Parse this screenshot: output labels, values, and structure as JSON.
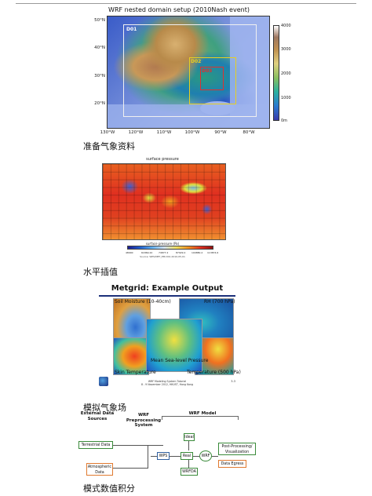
{
  "panel1": {
    "title": "WRF nested domain setup (2010Nash event)",
    "domains": [
      "D01",
      "D02",
      "D03"
    ],
    "lat_ticks": [
      "50°N",
      "40°N",
      "30°N",
      "20°N"
    ],
    "lon_ticks": [
      "130°W",
      "120°W",
      "110°W",
      "100°W",
      "90°W",
      "80°W"
    ],
    "colorbar": [
      "4000",
      "3000",
      "2000",
      "1000",
      "0m"
    ],
    "caption": "准备气象资料"
  },
  "panel2": {
    "title": "surface pressure",
    "colorbar_title": "surface pressure (Pa)",
    "colorbar_ticks": [
      "48900",
      "61869.22",
      "74877.2",
      "87929.2",
      "100880.2",
      "113874.6"
    ],
    "source": "Source: WPS/MET_EM.D01.2010-05-01",
    "caption": "水平插值"
  },
  "panel3": {
    "title": "Metgrid: Example Output",
    "tiles": {
      "soil": "Soil Moisture (10-40cm)",
      "rh": "RH (700 hPa)",
      "mslp": "Mean Sea-level Pressure",
      "skin": "Skin Temperature",
      "temp": "Temperature (500 hPa)"
    },
    "footer1": "WRF Modeling System Tutorial",
    "footer2": "8 - 9 November 2012, HKUST, Hong Kong",
    "page": "3-3",
    "caption": "模拟气象场"
  },
  "panel4": {
    "headers": {
      "ext": "External Data Sources",
      "pre": "WRF Preprocessing System",
      "model": "WRF Model"
    },
    "boxes": {
      "terrestrial": "Terrestrial Data",
      "atmos": "Atmospheric Data",
      "wps": "WPS",
      "ideal": "Ideal",
      "real": "Real",
      "wrf": "WRF",
      "wrfda": "WRFDA",
      "post": "Post-Processing/ Visualization",
      "egress": "Data Egress"
    },
    "caption": "模式数值积分"
  }
}
